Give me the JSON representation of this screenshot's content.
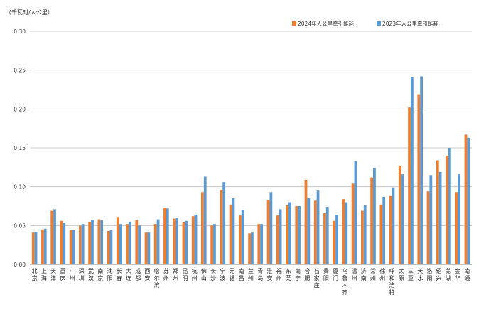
{
  "chart_data": {
    "type": "bar",
    "title": "",
    "unit_label": "（千瓦时/人公里）",
    "xlabel": "",
    "ylabel": "千瓦时/人公里",
    "ylim": [
      0,
      0.3
    ],
    "yticks": [
      "0.00",
      "0.05",
      "0.10",
      "0.15",
      "0.20",
      "0.25",
      "0.30"
    ],
    "grid": true,
    "legend_position": "top-right",
    "colors": {
      "series_2024": "#ED7D31",
      "series_2023": "#5B9BD5"
    },
    "categories": [
      "北京",
      "上海",
      "天津",
      "重庆",
      "广州",
      "深圳",
      "武汉",
      "南京",
      "沈阳",
      "长春",
      "大连",
      "成都",
      "西安",
      "哈尔滨",
      "苏州",
      "郑州",
      "昆明",
      "杭州",
      "佛山",
      "长沙",
      "宁波",
      "无锡",
      "南昌",
      "兰州",
      "青岛",
      "淮安",
      "福州",
      "东莞",
      "南宁",
      "合肥",
      "石家庄",
      "贵阳",
      "厦门",
      "乌鲁木齐",
      "温州",
      "济南",
      "常州",
      "徐州",
      "呼和浩特",
      "太原",
      "三亚",
      "天水",
      "洛阳",
      "绍兴",
      "芜湖",
      "金华",
      "南通"
    ],
    "series": [
      {
        "name": "2024年人公里牵引能耗",
        "values": [
          0.041,
          0.045,
          0.069,
          0.056,
          0.044,
          0.05,
          0.055,
          0.058,
          0.043,
          0.061,
          0.052,
          0.057,
          0.041,
          0.052,
          0.073,
          0.059,
          0.054,
          0.062,
          0.093,
          0.05,
          0.096,
          0.077,
          0.063,
          0.04,
          0.052,
          0.083,
          0.063,
          0.076,
          0.075,
          0.109,
          0.082,
          0.066,
          0.056,
          0.084,
          0.104,
          0.069,
          0.112,
          0.077,
          0.088,
          0.127,
          0.202,
          0.219,
          0.094,
          0.134,
          0.14,
          0.093,
          0.167
        ]
      },
      {
        "name": "2023年人公里牵引能耗",
        "values": [
          0.042,
          0.046,
          0.071,
          0.053,
          0.044,
          0.052,
          0.057,
          0.057,
          0.044,
          0.052,
          0.055,
          0.05,
          0.041,
          0.058,
          0.072,
          0.06,
          0.056,
          0.064,
          0.113,
          0.052,
          0.106,
          0.085,
          0.07,
          0.041,
          0.052,
          0.093,
          0.071,
          0.08,
          0.075,
          0.085,
          0.095,
          0.074,
          0.064,
          0.08,
          0.133,
          0.076,
          0.124,
          0.087,
          0.099,
          0.116,
          0.241,
          0.242,
          0.115,
          0.119,
          0.15,
          0.116,
          0.163
        ]
      }
    ]
  }
}
